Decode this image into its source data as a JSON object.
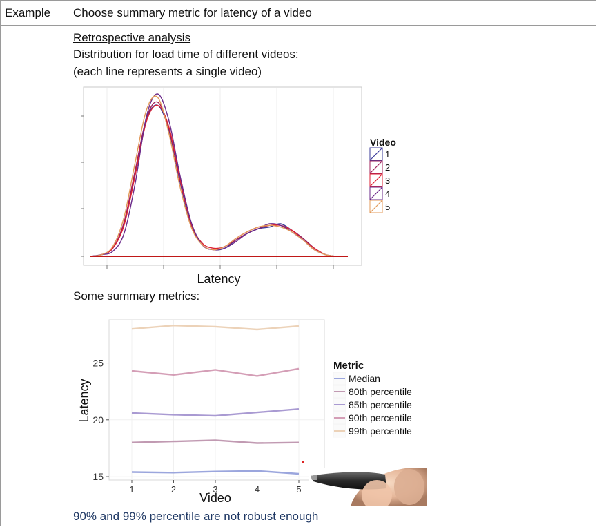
{
  "table": {
    "row1_label": "Example",
    "row1_text": "Choose summary metric for latency of a video"
  },
  "content": {
    "section_title": "Retrospective analysis",
    "description_line1": "Distribution for load time of different videos:",
    "description_line2": "(each line represents a single video)",
    "summary_heading": "Some summary metrics:",
    "conclusion": "90% and 99% percentile are not robust enough"
  },
  "chart_data": [
    {
      "type": "line",
      "xlabel": "Latency",
      "ylabel": "",
      "legend_title": "Video",
      "legend_position": "right",
      "x": [
        0,
        1,
        2,
        3,
        4,
        5,
        6,
        7,
        8,
        9,
        10,
        11,
        12,
        13,
        14,
        15,
        16,
        17,
        18,
        19,
        20,
        21,
        22,
        23
      ],
      "series": [
        {
          "name": "1",
          "color": "#3b3b9a",
          "values": [
            0,
            0.01,
            0.05,
            0.2,
            0.52,
            0.84,
            0.93,
            0.78,
            0.46,
            0.19,
            0.07,
            0.04,
            0.05,
            0.1,
            0.14,
            0.17,
            0.18,
            0.2,
            0.16,
            0.11,
            0.05,
            0.01,
            0,
            0
          ]
        },
        {
          "name": "2",
          "color": "#a0205a",
          "values": [
            0,
            0.01,
            0.05,
            0.21,
            0.53,
            0.85,
            0.95,
            0.79,
            0.47,
            0.2,
            0.07,
            0.04,
            0.06,
            0.1,
            0.14,
            0.17,
            0.19,
            0.19,
            0.16,
            0.11,
            0.05,
            0.01,
            0,
            0
          ]
        },
        {
          "name": "3",
          "color": "#dd2233",
          "values": [
            0,
            0.01,
            0.05,
            0.19,
            0.5,
            0.83,
            0.93,
            0.8,
            0.48,
            0.2,
            0.08,
            0.05,
            0.06,
            0.11,
            0.15,
            0.18,
            0.19,
            0.19,
            0.16,
            0.1,
            0.05,
            0.01,
            0,
            0
          ]
        },
        {
          "name": "4",
          "color": "#6b2a8a",
          "values": [
            0,
            0.01,
            0.03,
            0.14,
            0.45,
            0.86,
            1.0,
            0.84,
            0.5,
            0.21,
            0.07,
            0.04,
            0.05,
            0.09,
            0.14,
            0.17,
            0.2,
            0.19,
            0.15,
            0.1,
            0.04,
            0.01,
            0,
            0
          ]
        },
        {
          "name": "5",
          "color": "#e39a5a",
          "values": [
            0,
            0.01,
            0.06,
            0.24,
            0.58,
            0.9,
            0.98,
            0.76,
            0.43,
            0.18,
            0.07,
            0.04,
            0.06,
            0.11,
            0.15,
            0.18,
            0.19,
            0.18,
            0.15,
            0.1,
            0.04,
            0.01,
            0,
            0
          ]
        }
      ]
    },
    {
      "type": "line",
      "xlabel": "Video",
      "ylabel": "Latency",
      "legend_title": "Metric",
      "legend_position": "right",
      "grid": true,
      "x": [
        1,
        2,
        3,
        4,
        5
      ],
      "xticks": [
        "1",
        "2",
        "3",
        "4",
        "5"
      ],
      "yticks": [
        "15",
        "20",
        "25"
      ],
      "ylim": [
        14.7,
        28.8
      ],
      "series": [
        {
          "name": "Median",
          "color": "#9ba6dd",
          "values": [
            15.4,
            15.35,
            15.45,
            15.5,
            15.25
          ]
        },
        {
          "name": "80th percentile",
          "color": "#c19ab2",
          "values": [
            18.0,
            18.1,
            18.2,
            17.95,
            18.0
          ]
        },
        {
          "name": "85th percentile",
          "color": "#a99ad2",
          "values": [
            20.6,
            20.45,
            20.35,
            20.65,
            20.95
          ]
        },
        {
          "name": "90th percentile",
          "color": "#d49eb6",
          "values": [
            24.3,
            23.95,
            24.4,
            23.85,
            24.5
          ]
        },
        {
          "name": "99th percentile",
          "color": "#ecd2b8",
          "values": [
            28.0,
            28.3,
            28.2,
            27.95,
            28.25
          ]
        }
      ]
    }
  ]
}
